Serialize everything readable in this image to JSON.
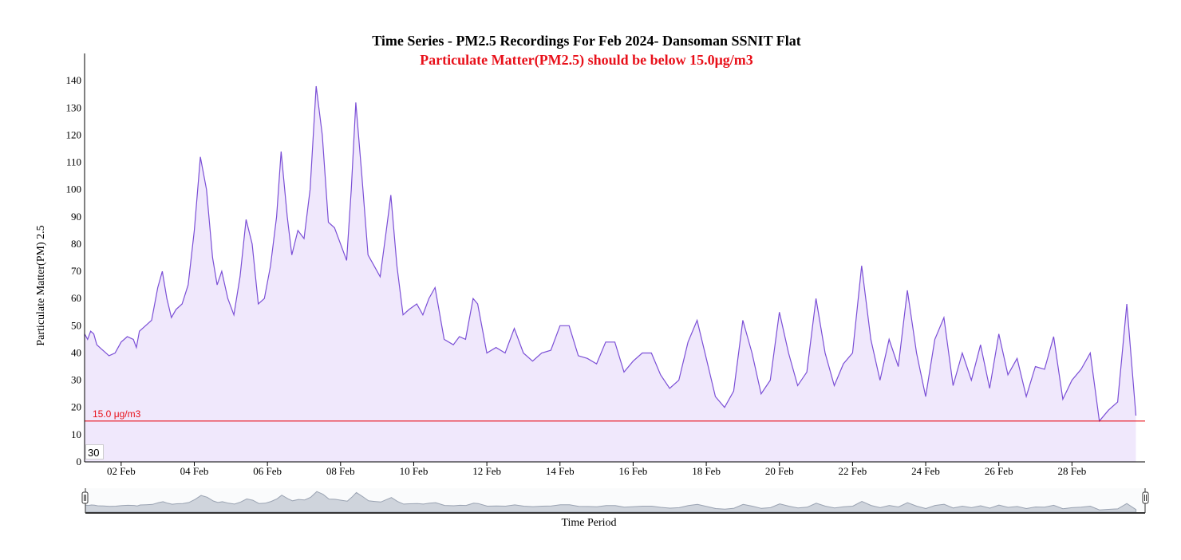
{
  "chart_data": {
    "type": "area",
    "title": "Time Series - PM2.5 Recordings For Feb 2024- Dansoman SSNIT Flat",
    "subtitle": "Particulate Matter(PM2.5) should be below 15.0μg/m3",
    "xlabel": "Time Period",
    "ylabel": "Particulate Matter(PM) 2.5",
    "ylim": [
      0,
      150
    ],
    "yticks": [
      0,
      10,
      20,
      30,
      40,
      50,
      60,
      70,
      80,
      90,
      100,
      110,
      120,
      130,
      140
    ],
    "xlim": [
      "2024-02-01",
      "2024-03-01"
    ],
    "xticks": [
      {
        "date": "2024-02-02",
        "label": "02 Feb"
      },
      {
        "date": "2024-02-04",
        "label": "04 Feb"
      },
      {
        "date": "2024-02-06",
        "label": "06 Feb"
      },
      {
        "date": "2024-02-08",
        "label": "08 Feb"
      },
      {
        "date": "2024-02-10",
        "label": "10 Feb"
      },
      {
        "date": "2024-02-12",
        "label": "12 Feb"
      },
      {
        "date": "2024-02-14",
        "label": "14 Feb"
      },
      {
        "date": "2024-02-16",
        "label": "16 Feb"
      },
      {
        "date": "2024-02-18",
        "label": "18 Feb"
      },
      {
        "date": "2024-02-20",
        "label": "20 Feb"
      },
      {
        "date": "2024-02-22",
        "label": "22 Feb"
      },
      {
        "date": "2024-02-24",
        "label": "24 Feb"
      },
      {
        "date": "2024-02-26",
        "label": "26 Feb"
      },
      {
        "date": "2024-02-28",
        "label": "28 Feb"
      }
    ],
    "threshold": {
      "value": 15,
      "label": "15.0 μg/m3",
      "color": "#e8101a"
    },
    "line_color": "#7b4fd6",
    "fill_color": "#f0e8fc",
    "grid": false,
    "navigator": true,
    "series": [
      {
        "points": [
          [
            "2024-02-01T00:00",
            47
          ],
          [
            "2024-02-01T02:00",
            45
          ],
          [
            "2024-02-01T04:00",
            48
          ],
          [
            "2024-02-01T06:00",
            47
          ],
          [
            "2024-02-01T08:00",
            43
          ],
          [
            "2024-02-01T12:00",
            41
          ],
          [
            "2024-02-01T16:00",
            39
          ],
          [
            "2024-02-01T20:00",
            40
          ],
          [
            "2024-02-02T00:00",
            44
          ],
          [
            "2024-02-02T04:00",
            46
          ],
          [
            "2024-02-02T08:00",
            45
          ],
          [
            "2024-02-02T10:00",
            42
          ],
          [
            "2024-02-02T12:00",
            48
          ],
          [
            "2024-02-02T16:00",
            50
          ],
          [
            "2024-02-02T20:00",
            52
          ],
          [
            "2024-02-03T00:00",
            64
          ],
          [
            "2024-02-03T03:00",
            70
          ],
          [
            "2024-02-03T06:00",
            60
          ],
          [
            "2024-02-03T09:00",
            53
          ],
          [
            "2024-02-03T12:00",
            56
          ],
          [
            "2024-02-03T16:00",
            58
          ],
          [
            "2024-02-03T20:00",
            65
          ],
          [
            "2024-02-04T00:00",
            85
          ],
          [
            "2024-02-04T04:00",
            112
          ],
          [
            "2024-02-04T08:00",
            100
          ],
          [
            "2024-02-04T12:00",
            75
          ],
          [
            "2024-02-04T15:00",
            65
          ],
          [
            "2024-02-04T18:00",
            70
          ],
          [
            "2024-02-04T22:00",
            60
          ],
          [
            "2024-02-05T02:00",
            54
          ],
          [
            "2024-02-05T06:00",
            68
          ],
          [
            "2024-02-05T10:00",
            89
          ],
          [
            "2024-02-05T14:00",
            80
          ],
          [
            "2024-02-05T18:00",
            58
          ],
          [
            "2024-02-05T22:00",
            60
          ],
          [
            "2024-02-06T02:00",
            72
          ],
          [
            "2024-02-06T06:00",
            90
          ],
          [
            "2024-02-06T09:00",
            114
          ],
          [
            "2024-02-06T13:00",
            90
          ],
          [
            "2024-02-06T16:00",
            76
          ],
          [
            "2024-02-06T20:00",
            85
          ],
          [
            "2024-02-07T00:00",
            82
          ],
          [
            "2024-02-07T04:00",
            100
          ],
          [
            "2024-02-07T08:00",
            138
          ],
          [
            "2024-02-07T12:00",
            120
          ],
          [
            "2024-02-07T16:00",
            88
          ],
          [
            "2024-02-07T20:00",
            86
          ],
          [
            "2024-02-08T00:00",
            80
          ],
          [
            "2024-02-08T04:00",
            74
          ],
          [
            "2024-02-08T07:00",
            100
          ],
          [
            "2024-02-08T10:00",
            132
          ],
          [
            "2024-02-08T14:00",
            105
          ],
          [
            "2024-02-08T18:00",
            76
          ],
          [
            "2024-02-08T22:00",
            72
          ],
          [
            "2024-02-09T02:00",
            68
          ],
          [
            "2024-02-09T06:00",
            85
          ],
          [
            "2024-02-09T09:00",
            98
          ],
          [
            "2024-02-09T13:00",
            72
          ],
          [
            "2024-02-09T17:00",
            54
          ],
          [
            "2024-02-09T21:00",
            56
          ],
          [
            "2024-02-10T02:00",
            58
          ],
          [
            "2024-02-10T06:00",
            54
          ],
          [
            "2024-02-10T10:00",
            60
          ],
          [
            "2024-02-10T14:00",
            64
          ],
          [
            "2024-02-10T20:00",
            45
          ],
          [
            "2024-02-11T02:00",
            43
          ],
          [
            "2024-02-11T06:00",
            46
          ],
          [
            "2024-02-11T10:00",
            45
          ],
          [
            "2024-02-11T15:00",
            60
          ],
          [
            "2024-02-11T18:00",
            58
          ],
          [
            "2024-02-12T00:00",
            40
          ],
          [
            "2024-02-12T06:00",
            42
          ],
          [
            "2024-02-12T12:00",
            40
          ],
          [
            "2024-02-12T18:00",
            49
          ],
          [
            "2024-02-13T00:00",
            40
          ],
          [
            "2024-02-13T06:00",
            37
          ],
          [
            "2024-02-13T12:00",
            40
          ],
          [
            "2024-02-13T18:00",
            41
          ],
          [
            "2024-02-14T00:00",
            50
          ],
          [
            "2024-02-14T06:00",
            50
          ],
          [
            "2024-02-14T12:00",
            39
          ],
          [
            "2024-02-14T18:00",
            38
          ],
          [
            "2024-02-15T00:00",
            36
          ],
          [
            "2024-02-15T06:00",
            44
          ],
          [
            "2024-02-15T12:00",
            44
          ],
          [
            "2024-02-15T18:00",
            33
          ],
          [
            "2024-02-16T00:00",
            37
          ],
          [
            "2024-02-16T06:00",
            40
          ],
          [
            "2024-02-16T12:00",
            40
          ],
          [
            "2024-02-16T18:00",
            32
          ],
          [
            "2024-02-17T00:00",
            27
          ],
          [
            "2024-02-17T06:00",
            30
          ],
          [
            "2024-02-17T12:00",
            44
          ],
          [
            "2024-02-17T18:00",
            52
          ],
          [
            "2024-02-18T00:00",
            38
          ],
          [
            "2024-02-18T06:00",
            24
          ],
          [
            "2024-02-18T12:00",
            20
          ],
          [
            "2024-02-18T18:00",
            26
          ],
          [
            "2024-02-19T00:00",
            52
          ],
          [
            "2024-02-19T06:00",
            40
          ],
          [
            "2024-02-19T12:00",
            25
          ],
          [
            "2024-02-19T18:00",
            30
          ],
          [
            "2024-02-20T00:00",
            55
          ],
          [
            "2024-02-20T06:00",
            40
          ],
          [
            "2024-02-20T12:00",
            28
          ],
          [
            "2024-02-20T18:00",
            33
          ],
          [
            "2024-02-21T00:00",
            60
          ],
          [
            "2024-02-21T06:00",
            40
          ],
          [
            "2024-02-21T12:00",
            28
          ],
          [
            "2024-02-21T18:00",
            36
          ],
          [
            "2024-02-22T00:00",
            40
          ],
          [
            "2024-02-22T06:00",
            72
          ],
          [
            "2024-02-22T12:00",
            45
          ],
          [
            "2024-02-22T18:00",
            30
          ],
          [
            "2024-02-23T00:00",
            45
          ],
          [
            "2024-02-23T06:00",
            35
          ],
          [
            "2024-02-23T12:00",
            63
          ],
          [
            "2024-02-23T18:00",
            40
          ],
          [
            "2024-02-24T00:00",
            24
          ],
          [
            "2024-02-24T06:00",
            45
          ],
          [
            "2024-02-24T12:00",
            53
          ],
          [
            "2024-02-24T18:00",
            28
          ],
          [
            "2024-02-25T00:00",
            40
          ],
          [
            "2024-02-25T06:00",
            30
          ],
          [
            "2024-02-25T12:00",
            43
          ],
          [
            "2024-02-25T18:00",
            27
          ],
          [
            "2024-02-26T00:00",
            47
          ],
          [
            "2024-02-26T06:00",
            32
          ],
          [
            "2024-02-26T12:00",
            38
          ],
          [
            "2024-02-26T18:00",
            24
          ],
          [
            "2024-02-27T00:00",
            35
          ],
          [
            "2024-02-27T06:00",
            34
          ],
          [
            "2024-02-27T12:00",
            46
          ],
          [
            "2024-02-27T18:00",
            23
          ],
          [
            "2024-02-28T00:00",
            30
          ],
          [
            "2024-02-28T06:00",
            34
          ],
          [
            "2024-02-28T12:00",
            40
          ],
          [
            "2024-02-28T18:00",
            15
          ],
          [
            "2024-02-29T00:00",
            19
          ],
          [
            "2024-02-29T06:00",
            22
          ],
          [
            "2024-02-29T12:00",
            58
          ],
          [
            "2024-02-29T18:00",
            17
          ]
        ]
      }
    ]
  },
  "range_selector": {
    "value": "30"
  }
}
